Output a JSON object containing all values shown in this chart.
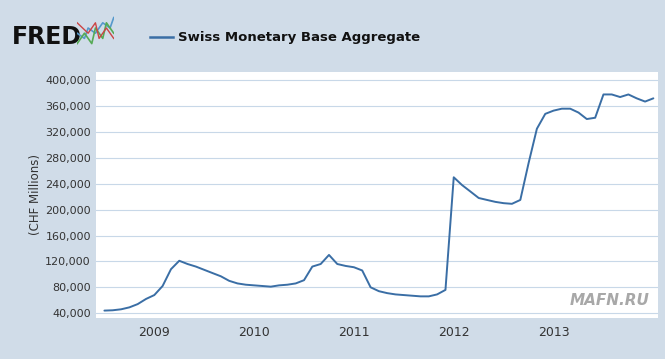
{
  "title": "Swiss Monetary Base Aggregate",
  "ylabel": "(CHF Millions)",
  "line_color": "#3a6ea5",
  "line_width": 1.4,
  "bg_outer": "#d0dce8",
  "bg_plot": "#ffffff",
  "grid_color": "#c8d8e8",
  "yticks": [
    40000,
    80000,
    120000,
    160000,
    200000,
    240000,
    280000,
    320000,
    360000,
    400000
  ],
  "ylim": [
    33000,
    413000
  ],
  "x_data": [
    2008.5,
    2008.583,
    2008.667,
    2008.75,
    2008.833,
    2008.917,
    2009.0,
    2009.083,
    2009.167,
    2009.25,
    2009.333,
    2009.417,
    2009.5,
    2009.583,
    2009.667,
    2009.75,
    2009.833,
    2009.917,
    2010.0,
    2010.083,
    2010.167,
    2010.25,
    2010.333,
    2010.417,
    2010.5,
    2010.583,
    2010.667,
    2010.75,
    2010.833,
    2010.917,
    2011.0,
    2011.083,
    2011.167,
    2011.25,
    2011.333,
    2011.417,
    2011.5,
    2011.583,
    2011.667,
    2011.75,
    2011.833,
    2011.917,
    2012.0,
    2012.083,
    2012.167,
    2012.25,
    2012.333,
    2012.417,
    2012.5,
    2012.583,
    2012.667,
    2012.75,
    2012.833,
    2012.917,
    2013.0,
    2013.083,
    2013.167,
    2013.25,
    2013.333,
    2013.417,
    2013.5,
    2013.583,
    2013.667,
    2013.75,
    2013.833,
    2013.917,
    2014.0
  ],
  "y_data": [
    44000,
    44500,
    46000,
    49000,
    54000,
    62000,
    68000,
    82000,
    108000,
    121000,
    116000,
    112000,
    107000,
    102000,
    97000,
    90000,
    86000,
    84000,
    83000,
    82000,
    81000,
    83000,
    84000,
    86000,
    91000,
    112000,
    116000,
    130000,
    116000,
    113000,
    111000,
    106000,
    80000,
    74000,
    71000,
    69000,
    68000,
    67000,
    66000,
    66000,
    69000,
    76000,
    250000,
    238000,
    228000,
    218000,
    215000,
    212000,
    210000,
    209000,
    215000,
    272000,
    325000,
    348000,
    353000,
    356000,
    356000,
    350000,
    340000,
    342000,
    378000,
    378000,
    374000,
    378000,
    372000,
    367000,
    372000
  ],
  "xticks": [
    2009.0,
    2010.0,
    2011.0,
    2012.0,
    2013.0
  ],
  "xlim": [
    2008.42,
    2014.05
  ]
}
